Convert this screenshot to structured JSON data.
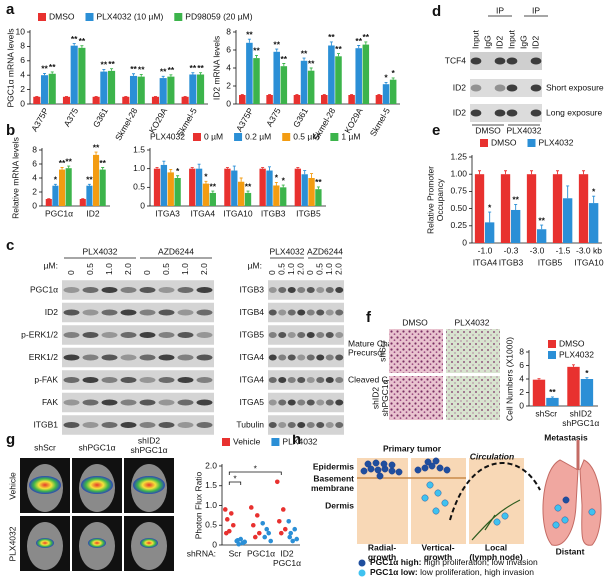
{
  "panel_labels": [
    "a",
    "b",
    "c",
    "d",
    "e",
    "f",
    "g",
    "h"
  ],
  "chart_data": [
    {
      "type": "bar",
      "ylabel": "PGC1α mRNA levels",
      "categories": [
        "A375P",
        "A375",
        "G361",
        "Skmel-28",
        "KO29A",
        "Skmel-5"
      ],
      "ylim": [
        0,
        10
      ],
      "yticks": [
        0,
        2,
        4,
        6,
        8,
        10
      ],
      "legend": "top",
      "series": [
        {
          "name": "DMSO",
          "color": "#e8312f",
          "values": [
            1,
            1,
            1,
            1,
            1,
            1
          ],
          "errors": [
            0.05,
            0.05,
            0.05,
            0.05,
            0.05,
            0.05
          ]
        },
        {
          "name": "PLX4032 (10 µM)",
          "color": "#2b8fd6",
          "values": [
            4,
            8.1,
            4.5,
            3.9,
            3.6,
            4.1
          ],
          "errors": [
            0.25,
            0.3,
            0.3,
            0.3,
            0.25,
            0.25
          ],
          "annotations": [
            "**",
            "**",
            "**",
            "**",
            "**",
            "**"
          ]
        },
        {
          "name": "PD98059 (20 µM)",
          "color": "#3cb44b",
          "values": [
            4.2,
            7.8,
            4.6,
            3.8,
            3.8,
            4.1
          ],
          "errors": [
            0.25,
            0.3,
            0.3,
            0.3,
            0.25,
            0.25
          ],
          "annotations": [
            "**",
            "**",
            "**",
            "**",
            "**",
            "**"
          ]
        }
      ]
    },
    {
      "type": "bar",
      "ylabel": "ID2 mRNA levels",
      "categories": [
        "A375P",
        "A375",
        "G361",
        "Skmel-28",
        "KO29A",
        "Skmel-5"
      ],
      "ylim": [
        0,
        8
      ],
      "yticks": [
        0,
        2,
        4,
        6,
        8
      ],
      "series": [
        {
          "color": "#e8312f",
          "values": [
            1,
            1,
            1,
            1,
            1,
            1
          ],
          "errors": [
            0.05,
            0.05,
            0.05,
            0.05,
            0.05,
            0.05
          ]
        },
        {
          "color": "#2b8fd6",
          "values": [
            6.8,
            5.8,
            4.8,
            6.5,
            6.2,
            2.2
          ],
          "errors": [
            0.4,
            0.3,
            0.3,
            0.4,
            0.3,
            0.2
          ],
          "annotations": [
            "**",
            "**",
            "**",
            "**",
            "**",
            "*"
          ]
        },
        {
          "color": "#3cb44b",
          "values": [
            5.1,
            4.2,
            3.7,
            5.3,
            6.6,
            2.7
          ],
          "errors": [
            0.3,
            0.3,
            0.3,
            0.3,
            0.3,
            0.2
          ],
          "annotations": [
            "**",
            "**",
            "**",
            "**",
            "**",
            "*"
          ]
        }
      ]
    },
    {
      "type": "bar",
      "ylabel": "Relative mRNA levels",
      "categories": [
        "PGC1α",
        "ID2"
      ],
      "ylim": [
        0,
        8
      ],
      "yticks": [
        0,
        2,
        4,
        6,
        8
      ],
      "series": [
        {
          "color": "#e8312f",
          "values": [
            1,
            1
          ],
          "errors": [
            0.05,
            0.05
          ]
        },
        {
          "color": "#2b8fd6",
          "values": [
            2.9,
            2.9
          ],
          "errors": [
            0.2,
            0.2
          ],
          "annotations": [
            "*",
            "**"
          ]
        },
        {
          "color": "#f39c12",
          "values": [
            5.2,
            7.3
          ],
          "errors": [
            0.3,
            0.4
          ],
          "annotations": [
            "**",
            "**"
          ]
        },
        {
          "color": "#3cb44b",
          "values": [
            5.4,
            5.2
          ],
          "errors": [
            0.3,
            0.3
          ],
          "annotations": [
            "**",
            "**"
          ]
        }
      ]
    },
    {
      "type": "bar",
      "legend_title": "PLX4032",
      "categories": [
        "ITGA3",
        "ITGA4",
        "ITGA10",
        "ITGB3",
        "ITGB5"
      ],
      "ylim": [
        0,
        1.5
      ],
      "yticks": [
        0,
        0.5,
        {
          "value": 1,
          "label": "1.0"
        },
        1.5
      ],
      "legend": "top",
      "series": [
        {
          "name": "0 µM",
          "color": "#e8312f",
          "values": [
            1,
            1,
            1,
            1,
            1
          ],
          "errors": [
            0.03,
            0.03,
            0.03,
            0.03,
            0.03
          ]
        },
        {
          "name": "0.2 µM",
          "color": "#2b8fd6",
          "values": [
            1.1,
            1.0,
            0.95,
            0.95,
            0.85
          ],
          "errors": [
            0.1,
            0.12,
            0.12,
            0.1,
            0.1
          ]
        },
        {
          "name": "0.5 µM",
          "color": "#f39c12",
          "values": [
            0.9,
            0.6,
            0.65,
            0.55,
            0.75
          ],
          "errors": [
            0.08,
            0.06,
            0.1,
            0.08,
            0.12
          ],
          "annotations": [
            null,
            "*",
            null,
            "*",
            null
          ]
        },
        {
          "name": "1 µM",
          "color": "#3cb44b",
          "values": [
            0.75,
            0.35,
            0.35,
            0.5,
            0.45
          ],
          "errors": [
            0.06,
            0.05,
            0.05,
            0.06,
            0.06
          ],
          "annotations": [
            "*",
            "**",
            "**",
            "*",
            "**"
          ]
        }
      ]
    },
    {
      "type": "bar",
      "ylabel": [
        "Relative Promoter",
        "Occupancy"
      ],
      "categories": [
        "-1.0",
        "-0.3",
        "-3.0",
        "-1.5",
        "-3.0 kb"
      ],
      "category_groups": [
        "ITGA4",
        "ITGB3",
        "ITGB5",
        "ITGA10"
      ],
      "ylim": [
        0,
        1.25
      ],
      "yticks": [
        0,
        0.25,
        {
          "value": 0.5,
          "label": "0.50"
        },
        0.75,
        {
          "value": 1,
          "label": "1.00"
        },
        1.25
      ],
      "legend": "top",
      "series": [
        {
          "name": "DMSO",
          "color": "#e8312f",
          "values": [
            1,
            1,
            1,
            1,
            1
          ],
          "errors": [
            0.05,
            0.05,
            0.05,
            0.05,
            0.05
          ]
        },
        {
          "name": "PLX4032",
          "color": "#2b8fd6",
          "values": [
            0.3,
            0.48,
            0.2,
            0.65,
            0.58
          ],
          "errors": [
            0.15,
            0.08,
            0.06,
            0.18,
            0.1
          ],
          "annotations": [
            "*",
            "**",
            "**",
            null,
            "*"
          ]
        }
      ]
    },
    {
      "type": "bar",
      "ylabel": "Cell Numbers (X1000)",
      "categories": [
        "shScr",
        [
          "shID2",
          "shPGC1α"
        ]
      ],
      "ylim": [
        0,
        8
      ],
      "yticks": [
        0,
        2,
        4,
        6,
        8
      ],
      "legend": "top-right",
      "series": [
        {
          "name": "DMSO",
          "color": "#e8312f",
          "values": [
            3.9,
            5.8
          ],
          "errors": [
            0.15,
            0.3
          ]
        },
        {
          "name": "PLX4032",
          "color": "#2b8fd6",
          "values": [
            1.2,
            4.0
          ],
          "errors": [
            0.15,
            0.2
          ],
          "annotations": [
            "**",
            "*"
          ]
        }
      ]
    },
    {
      "type": "strip",
      "ylabel": "Photon Flux Ratio",
      "xlabel": "shRNA:",
      "categories": [
        "Scr",
        "PGC1α",
        [
          "ID2",
          "PGC1α"
        ]
      ],
      "ylim": [
        0,
        2
      ],
      "yticks": [
        0,
        0.5,
        {
          "value": 1,
          "label": "1.0"
        },
        1.5,
        {
          "value": 2,
          "label": "2.0"
        }
      ],
      "legend": "top",
      "significance": [
        "*",
        "*"
      ],
      "series": [
        {
          "name": "Vehicle",
          "color": "#e8312f",
          "values": [
            [
              0.9,
              0.8,
              0.65,
              0.5,
              0.35,
              0.3
            ],
            [
              0.95,
              0.75,
              0.5,
              0.3,
              0.2
            ],
            [
              1.6,
              0.9,
              0.6,
              0.4,
              0.3
            ]
          ]
        },
        {
          "name": "PLX4032",
          "color": "#2b8fd6",
          "values": [
            [
              0.1,
              0.05,
              0.02,
              0.08,
              0.15,
              0.12
            ],
            [
              0.55,
              0.3,
              0.2,
              0.1,
              0.4
            ],
            [
              0.6,
              0.4,
              0.3,
              0.15,
              0.1,
              0.2
            ]
          ]
        }
      ]
    }
  ],
  "blot_c": {
    "left": {
      "unit": "µM:",
      "groups": [
        "PLX4032",
        "AZD6244"
      ],
      "doses": [
        "0",
        "0.5",
        "1.0",
        "2.0",
        "0",
        "0.5",
        "1.0",
        "2.0"
      ],
      "rows": [
        "PGC1α",
        "ID2",
        "p-ERK1/2",
        "ERK1/2",
        "p-FAK",
        "FAK",
        "ITGB1"
      ]
    },
    "right": {
      "unit": "µM:",
      "groups": [
        "PLX4032",
        "AZD6244"
      ],
      "doses": [
        "0",
        "0.5",
        "1.0",
        "2.0",
        "0",
        "0.5",
        "1.0",
        "2.0"
      ],
      "rows": [
        "ITGB3",
        "ITGB4",
        "ITGB5",
        "ITGA4",
        "ITGA4",
        "ITGA5",
        "Tubulin"
      ],
      "notes": [
        "Mature Chain",
        "Precursor",
        "Cleaved C-terminal"
      ]
    }
  },
  "blot_d": {
    "ip": [
      "IP",
      "IP"
    ],
    "lanes": [
      "Input",
      "IgG",
      "ID2",
      "Input",
      "IgG",
      "ID2"
    ],
    "rows": [
      "TCF4",
      "ID2",
      "ID2"
    ],
    "exposures": [
      "Short exposure",
      "Long exposure"
    ],
    "conditions": [
      "DMSO",
      "PLX4032"
    ]
  },
  "panel_f_images": {
    "columns": [
      "DMSO",
      "PLX4032"
    ],
    "rows": [
      "shScr",
      [
        "shID2",
        "shPGC1α"
      ]
    ]
  },
  "panel_g_images": {
    "columns": [
      "shScr",
      "shPGC1α",
      [
        "shID2",
        "shPGC1α"
      ]
    ],
    "rows": [
      "Vehicle",
      "PLX4032"
    ]
  },
  "diagram_h": {
    "titles": [
      "Primary tumor",
      "Metastasis"
    ],
    "layers": [
      "Epidermis",
      [
        "Basement",
        "membrane"
      ],
      "Dermis"
    ],
    "circulation": "Circulation",
    "stages": [
      [
        "Radial-",
        "growth"
      ],
      [
        "Vertical-",
        "growth"
      ],
      [
        "Local",
        "(lymph node)"
      ],
      "Distant"
    ],
    "legend": [
      {
        "key": "PGC1α high:",
        "text": " high proliferation, low invasion"
      },
      {
        "key": "PGC1α low:",
        "text": " low proliferation, high invasion"
      }
    ]
  }
}
